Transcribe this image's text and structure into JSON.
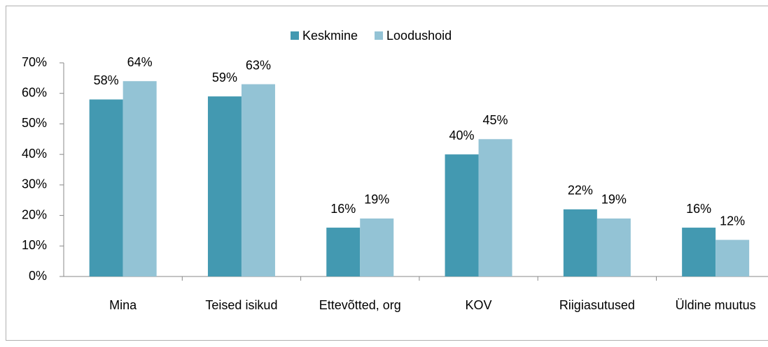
{
  "chart_data": {
    "type": "bar",
    "categories": [
      "Mina",
      "Teised isikud",
      "Ettevõtted, org",
      "KOV",
      "Riigiasutused",
      "Üldine muutus"
    ],
    "series": [
      {
        "name": "Keskmine",
        "color": "#4399b1",
        "values": [
          58,
          59,
          16,
          40,
          22,
          16
        ],
        "value_labels": [
          "58%",
          "59%",
          "16%",
          "40%",
          "22%",
          "16%"
        ]
      },
      {
        "name": "Loodushoid",
        "color": "#93c3d5",
        "values": [
          64,
          63,
          19,
          45,
          19,
          12
        ],
        "value_labels": [
          "64%",
          "63%",
          "19%",
          "45%",
          "19%",
          "12%"
        ]
      }
    ],
    "ylim": [
      0,
      70
    ],
    "yticks": [
      {
        "value": 0,
        "label": "0%"
      },
      {
        "value": 10,
        "label": "10%"
      },
      {
        "value": 20,
        "label": "20%"
      },
      {
        "value": 30,
        "label": "30%"
      },
      {
        "value": 40,
        "label": "40%"
      },
      {
        "value": 50,
        "label": "50%"
      },
      {
        "value": 60,
        "label": "60%"
      },
      {
        "value": 70,
        "label": "70%"
      }
    ],
    "grid": false,
    "legend": "top"
  }
}
